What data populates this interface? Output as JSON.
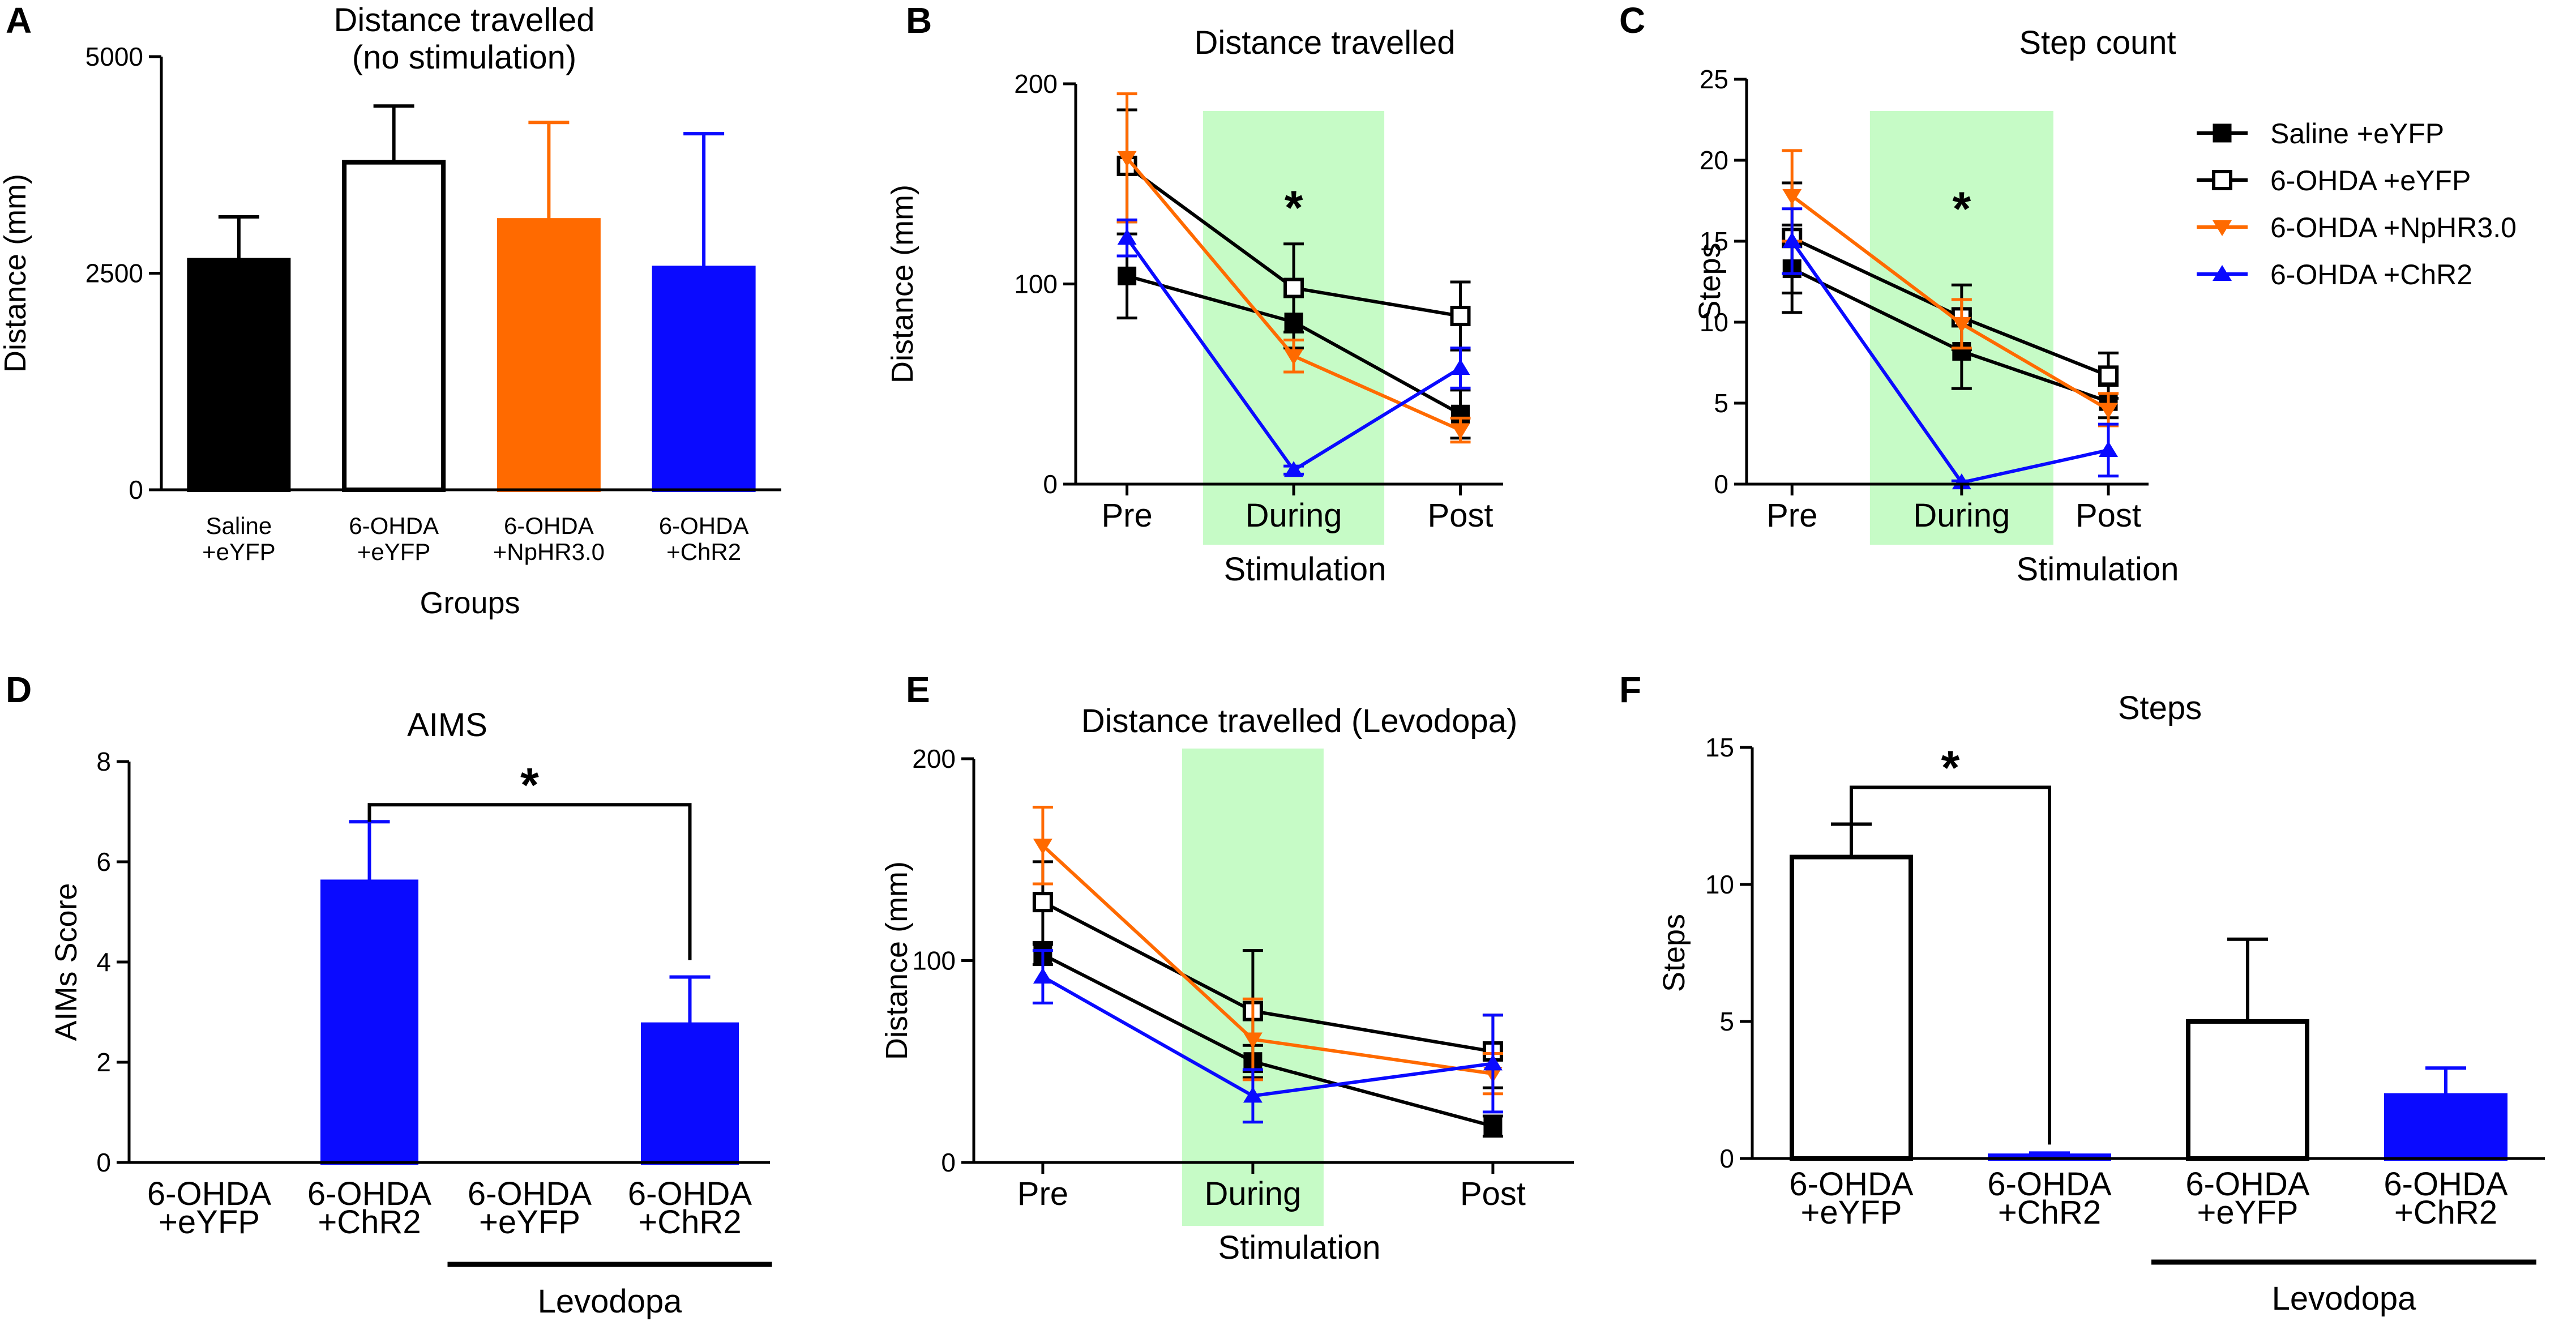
{
  "colors": {
    "saline": "#000000",
    "eyfp_fill": "#ffffff",
    "npHR": "#ff6a00",
    "chr2": "#0a0aff",
    "stim_band": "#c6fbc6",
    "axis": "#000000"
  },
  "chart_data": [
    {
      "id": "A",
      "panel_letter": "A",
      "type": "bar",
      "title_lines": [
        "Distance travelled",
        "(no  stimulation)"
      ],
      "ylabel": "Distance (mm)",
      "xlabel": "Groups",
      "ylim": [
        0,
        5000
      ],
      "yticks": [
        0,
        2500,
        5000
      ],
      "bars": [
        {
          "label_lines": [
            "Saline",
            "+eYFP"
          ],
          "value": 2650,
          "error": 500,
          "fill": "#000000",
          "stroke": "#000000"
        },
        {
          "label_lines": [
            "6-OHDA",
            "+eYFP"
          ],
          "value": 3780,
          "error": 650,
          "fill": "#ffffff",
          "stroke": "#000000"
        },
        {
          "label_lines": [
            "6-OHDA",
            "+NpHR3.0"
          ],
          "value": 3110,
          "error": 1130,
          "fill": "#ff6a00",
          "stroke": "#ff6a00"
        },
        {
          "label_lines": [
            "6-OHDA",
            "+ChR2"
          ],
          "value": 2560,
          "error": 1550,
          "fill": "#0a0aff",
          "stroke": "#0a0aff"
        }
      ]
    },
    {
      "id": "B",
      "panel_letter": "B",
      "type": "line",
      "title": "Distance travelled",
      "ylabel": "Distance (mm)",
      "xlabel": "Stimulation",
      "categories": [
        "Pre",
        "During",
        "Post"
      ],
      "ylim": [
        0,
        200
      ],
      "yticks": [
        0,
        100,
        200
      ],
      "stim_band": "During",
      "annotation": "*",
      "series": [
        {
          "name": "Saline +eYFP",
          "color": "#000000",
          "marker": "square-filled",
          "values": [
            104,
            81,
            35
          ],
          "errors": [
            21,
            13,
            12
          ]
        },
        {
          "name": "6-OHDA +eYFP",
          "color": "#000000",
          "marker": "square-open",
          "values": [
            159,
            98,
            84
          ],
          "errors": [
            28,
            22,
            17
          ]
        },
        {
          "name": "6-OHDA +NpHR3.0",
          "color": "#ff6a00",
          "marker": "triangle-down",
          "values": [
            163,
            64,
            27
          ],
          "errors": [
            32,
            8,
            6
          ]
        },
        {
          "name": "6-OHDA +ChR2",
          "color": "#0a0aff",
          "marker": "triangle-up",
          "values": [
            123,
            7,
            58
          ],
          "errors": [
            9,
            2,
            10
          ]
        }
      ]
    },
    {
      "id": "C",
      "panel_letter": "C",
      "type": "line",
      "title": "Step count",
      "ylabel": "Steps",
      "xlabel": "Stimulation",
      "categories": [
        "Pre",
        "During",
        "Post"
      ],
      "ylim": [
        0,
        25
      ],
      "yticks": [
        0,
        5,
        10,
        15,
        20,
        25
      ],
      "stim_band": "During",
      "annotation": "*",
      "series": [
        {
          "name": "Saline +eYFP",
          "color": "#000000",
          "marker": "square-filled",
          "values": [
            13.3,
            8.2,
            5.1
          ],
          "errors": [
            2.7,
            2.3,
            1.0
          ]
        },
        {
          "name": "6-OHDA +eYFP",
          "color": "#000000",
          "marker": "square-open",
          "values": [
            15.2,
            10.3,
            6.7
          ],
          "errors": [
            3.4,
            2.0,
            1.4
          ]
        },
        {
          "name": "6-OHDA +NpHR3.0",
          "color": "#ff6a00",
          "marker": "triangle-down",
          "values": [
            17.8,
            9.9,
            4.6
          ],
          "errors": [
            2.8,
            1.5,
            1.0
          ]
        },
        {
          "name": "6-OHDA +ChR2",
          "color": "#0a0aff",
          "marker": "triangle-up",
          "values": [
            15.0,
            0.1,
            2.1
          ],
          "errors": [
            2.0,
            0.1,
            1.6
          ]
        }
      ],
      "legend": [
        "Saline +eYFP",
        "6-OHDA +eYFP",
        "6-OHDA +NpHR3.0",
        "6-OHDA +ChR2"
      ]
    },
    {
      "id": "D",
      "panel_letter": "D",
      "type": "bar",
      "title": "AIMS",
      "ylabel": "AIMs Score",
      "ylim": [
        0,
        8
      ],
      "yticks": [
        0,
        2,
        4,
        6,
        8
      ],
      "bars": [
        {
          "label_lines": [
            "6-OHDA",
            "+eYFP"
          ],
          "value": 0,
          "error": 0,
          "fill": "#ffffff",
          "stroke": "#000000"
        },
        {
          "label_lines": [
            "6-OHDA",
            "+ChR2"
          ],
          "value": 5.6,
          "error": 1.2,
          "fill": "#0a0aff",
          "stroke": "#0a0aff"
        },
        {
          "label_lines": [
            "6-OHDA",
            "+eYFP"
          ],
          "value": 0,
          "error": 0,
          "fill": "#ffffff",
          "stroke": "#000000"
        },
        {
          "label_lines": [
            "6-OHDA",
            "+ChR2"
          ],
          "value": 2.75,
          "error": 0.95,
          "fill": "#0a0aff",
          "stroke": "#0a0aff"
        }
      ],
      "significance": {
        "from_bar": 1,
        "to_bar": 3,
        "label": "*"
      },
      "group_label": "Levodopa",
      "group_bars": [
        2,
        3
      ]
    },
    {
      "id": "E",
      "panel_letter": "E",
      "type": "line",
      "title": "Distance travelled (Levodopa)",
      "ylabel": "Distance (mm)",
      "xlabel": "Stimulation",
      "categories": [
        "Pre",
        "During",
        "Post"
      ],
      "ylim": [
        0,
        200
      ],
      "yticks": [
        0,
        100,
        200
      ],
      "stim_band": "During",
      "series": [
        {
          "name": "Saline +eYFP",
          "color": "#000000",
          "marker": "square-filled",
          "values": [
            103,
            50,
            18
          ],
          "errors": [
            5,
            8,
            5
          ]
        },
        {
          "name": "6-OHDA +eYFP",
          "color": "#000000",
          "marker": "square-open",
          "values": [
            129,
            75,
            55
          ],
          "errors": [
            20,
            30,
            18
          ]
        },
        {
          "name": "6-OHDA +NpHR3.0",
          "color": "#ff6a00",
          "marker": "triangle-down",
          "values": [
            157,
            61,
            44
          ],
          "errors": [
            19,
            20,
            10
          ]
        },
        {
          "name": "6-OHDA +ChR2",
          "color": "#0a0aff",
          "marker": "triangle-up",
          "values": [
            92,
            33,
            49
          ],
          "errors": [
            13,
            13,
            24
          ]
        }
      ]
    },
    {
      "id": "F",
      "panel_letter": "F",
      "type": "bar",
      "title": "Steps",
      "ylabel": "Steps",
      "ylim": [
        0,
        15
      ],
      "yticks": [
        0,
        5,
        10,
        15
      ],
      "bars": [
        {
          "label_lines": [
            "6-OHDA",
            "+eYFP"
          ],
          "value": 11.0,
          "error": 1.2,
          "fill": "#ffffff",
          "stroke": "#000000"
        },
        {
          "label_lines": [
            "6-OHDA",
            "+ChR2"
          ],
          "value": 0.1,
          "error": 0.1,
          "fill": "#0a0aff",
          "stroke": "#0a0aff"
        },
        {
          "label_lines": [
            "6-OHDA",
            "+eYFP"
          ],
          "value": 5.0,
          "error": 3.0,
          "fill": "#ffffff",
          "stroke": "#000000"
        },
        {
          "label_lines": [
            "6-OHDA",
            "+ChR2"
          ],
          "value": 2.3,
          "error": 1.0,
          "fill": "#0a0aff",
          "stroke": "#0a0aff"
        }
      ],
      "significance": {
        "from_bar": 0,
        "to_bar": 1,
        "label": "*"
      },
      "group_label": "Levodopa",
      "group_bars": [
        2,
        3
      ]
    }
  ]
}
